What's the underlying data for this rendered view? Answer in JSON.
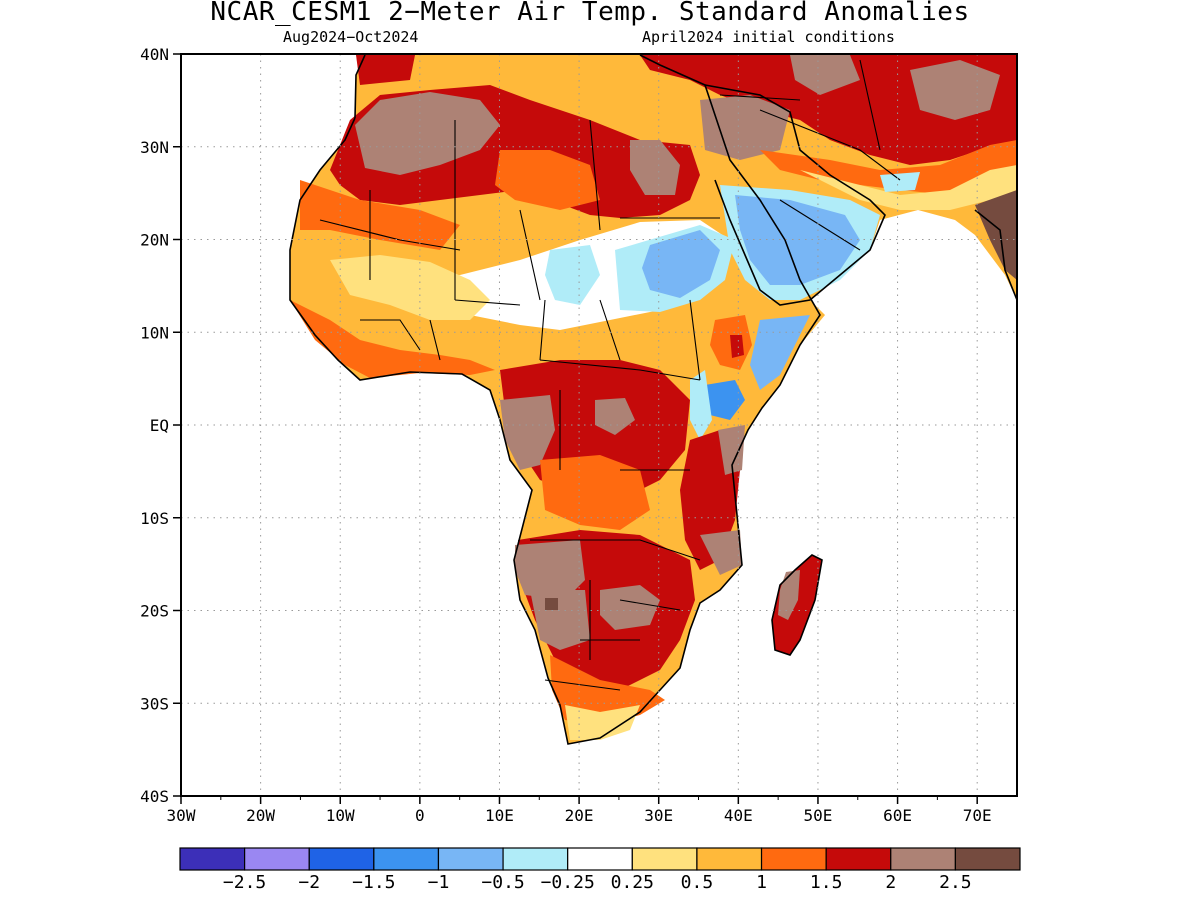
{
  "title": "NCAR_CESM1 2−Meter Air Temp. Standard Anomalies",
  "subtitle_left": "Aug2024−Oct2024",
  "subtitle_right": "April2024 initial conditions",
  "map": {
    "lon_range": [
      -30,
      75
    ],
    "lat_range": [
      -40,
      40
    ],
    "lat_ticks": [
      {
        "value": 40,
        "label": "40N"
      },
      {
        "value": 30,
        "label": "30N"
      },
      {
        "value": 20,
        "label": "20N"
      },
      {
        "value": 10,
        "label": "10N"
      },
      {
        "value": 0,
        "label": "EQ"
      },
      {
        "value": -10,
        "label": "10S"
      },
      {
        "value": -20,
        "label": "20S"
      },
      {
        "value": -30,
        "label": "30S"
      },
      {
        "value": -40,
        "label": "40S"
      }
    ],
    "lon_ticks": [
      {
        "value": -30,
        "label": "30W"
      },
      {
        "value": -20,
        "label": "20W"
      },
      {
        "value": -10,
        "label": "10W"
      },
      {
        "value": 0,
        "label": "0"
      },
      {
        "value": 10,
        "label": "10E"
      },
      {
        "value": 20,
        "label": "20E"
      },
      {
        "value": 30,
        "label": "30E"
      },
      {
        "value": 40,
        "label": "40E"
      },
      {
        "value": 50,
        "label": "50E"
      },
      {
        "value": 60,
        "label": "60E"
      },
      {
        "value": 70,
        "label": "70E"
      }
    ],
    "grid": "dotted"
  },
  "colorbar": {
    "colors": [
      "#3c2fb8",
      "#9a87f2",
      "#1f63e6",
      "#3c93f0",
      "#78b6f5",
      "#b0ecf8",
      "#ffffff",
      "#ffe17e",
      "#ffb93a",
      "#ff6a10",
      "#c50a0a",
      "#ad8275",
      "#754b3f"
    ],
    "labels": [
      "−2.5",
      "−2",
      "−1.5",
      "−1",
      "−0.5",
      "−0.25",
      "0.25",
      "0.5",
      "1",
      "1.5",
      "2",
      "2.5"
    ]
  }
}
